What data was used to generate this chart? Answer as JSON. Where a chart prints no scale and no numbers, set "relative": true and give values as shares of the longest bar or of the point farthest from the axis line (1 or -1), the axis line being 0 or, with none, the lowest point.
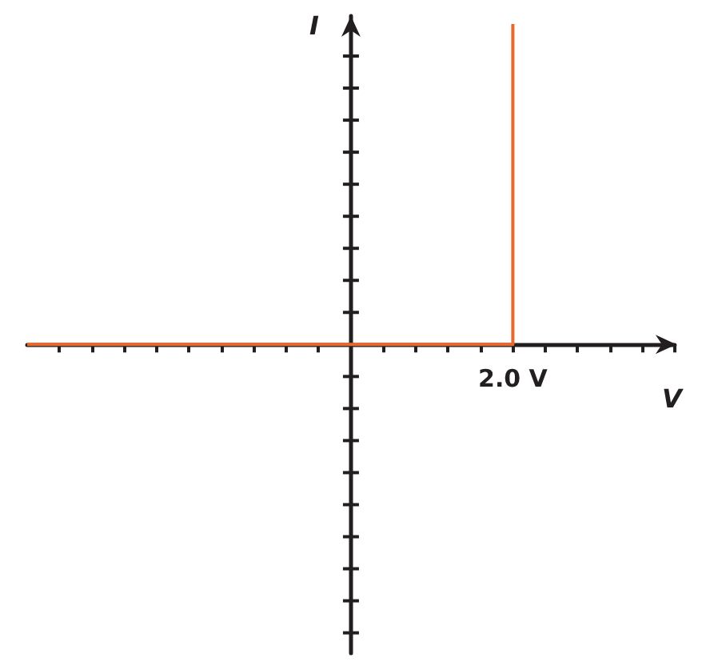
{
  "chart_data": {
    "type": "step",
    "xlabel": "V",
    "ylabel": "I",
    "relative": true,
    "grid": false,
    "marker": "none",
    "line_style": "solid",
    "annotations": [
      "2.0 V"
    ],
    "categories": [
      null,
      null,
      null,
      null,
      null,
      null,
      null,
      null,
      null,
      null,
      null,
      null,
      null,
      null,
      null,
      null,
      null,
      null,
      null,
      null,
      null
    ],
    "series": [
      {
        "color": "#e8692e",
        "values": [
          0,
          0,
          0,
          0,
          0,
          0,
          0,
          0,
          0,
          0,
          0,
          0,
          0,
          0,
          0,
          1,
          null,
          null,
          null,
          null,
          null
        ]
      }
    ]
  }
}
